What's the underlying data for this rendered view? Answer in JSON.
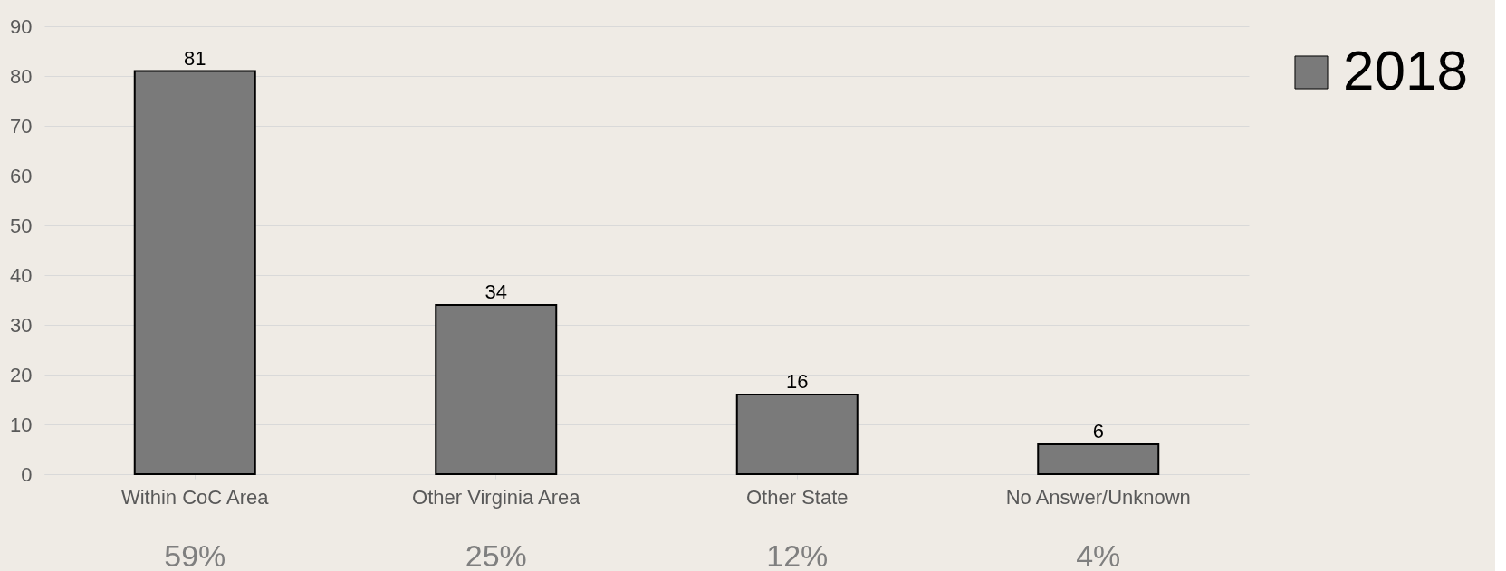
{
  "chart_data": {
    "type": "bar",
    "categories": [
      "Within CoC Area",
      "Other Virginia Area",
      "Other State",
      "No Answer/Unknown"
    ],
    "series": [
      {
        "name": "2018",
        "color": "#7a7a7a",
        "values": [
          81,
          34,
          16,
          6
        ]
      }
    ],
    "ylim": [
      0,
      90
    ],
    "yticks": [
      0,
      10,
      20,
      30,
      40,
      50,
      60,
      70,
      80,
      90
    ],
    "grid": "y",
    "legend": "right",
    "data_labels": true,
    "annotations": [
      "59%",
      "25%",
      "12%",
      "4%"
    ]
  }
}
